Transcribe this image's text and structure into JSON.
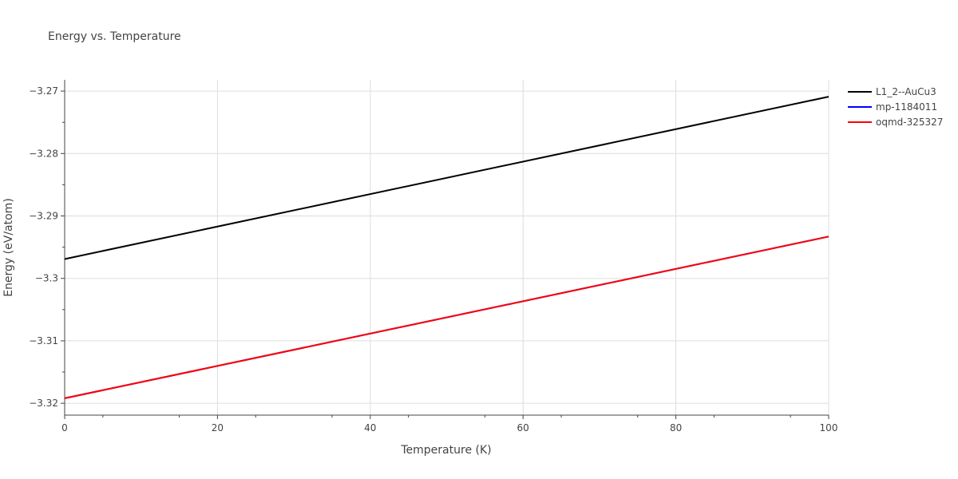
{
  "chart_data": {
    "type": "line",
    "title": "Energy vs. Temperature",
    "xlabel": "Temperature (K)",
    "ylabel": "Energy (eV/atom)",
    "xlim": [
      0,
      100
    ],
    "ylim": [
      -3.3219,
      -3.2682
    ],
    "x_ticks": [
      0,
      20,
      40,
      60,
      80,
      100
    ],
    "x_tick_labels": [
      "0",
      "20",
      "40",
      "60",
      "80",
      "100"
    ],
    "y_ticks": [
      -3.32,
      -3.31,
      -3.3,
      -3.29,
      -3.28,
      -3.27
    ],
    "y_tick_labels": [
      "−3.32",
      "−3.31",
      "−3.3",
      "−3.29",
      "−3.28",
      "−3.27"
    ],
    "grid": true,
    "legend_position": "top-right",
    "series": [
      {
        "name": "L1_2--AuCu3",
        "color": "#000000",
        "x": [
          0,
          100
        ],
        "y": [
          -3.2969,
          -3.2709
        ]
      },
      {
        "name": "mp-1184011",
        "color": "#0000ff",
        "x": [
          0,
          100
        ],
        "y": [
          -3.3192,
          -3.2933
        ]
      },
      {
        "name": "oqmd-325327",
        "color": "#ff0000",
        "x": [
          0,
          100
        ],
        "y": [
          -3.3192,
          -3.2933
        ]
      }
    ]
  }
}
